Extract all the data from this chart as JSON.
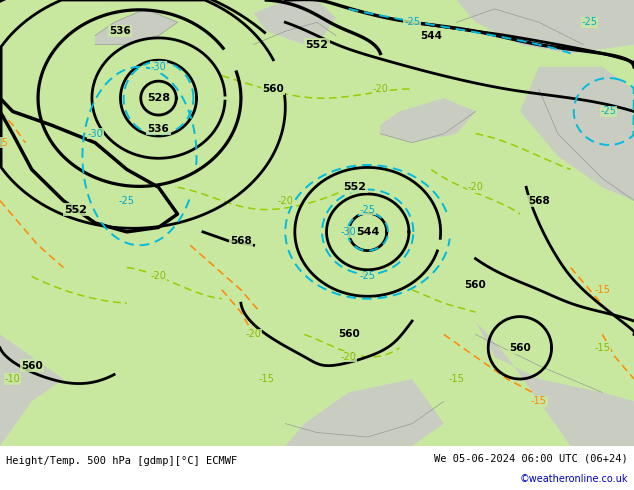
{
  "title_left": "Height/Temp. 500 hPa [gdmp][°C] ECMWF",
  "title_right": "We 05-06-2024 06:00 UTC (06+24)",
  "copyright": "©weatheronline.co.uk",
  "map_green": "#c8e8a0",
  "land_gray": "#c8c8c8",
  "coast_color": "#aaaaaa",
  "black_lw": 2.0,
  "cyan_lw": 1.4,
  "green_lw": 1.1,
  "orange_lw": 1.1,
  "fig_width": 6.34,
  "fig_height": 4.9,
  "dpi": 100
}
